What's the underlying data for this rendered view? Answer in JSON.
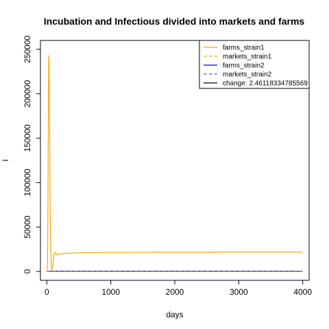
{
  "chart_data": {
    "type": "line",
    "title": "Incubation and Infectious divided into markets and farms",
    "xlabel": "days",
    "ylabel": "I",
    "xlim": [
      -100,
      4100
    ],
    "ylim": [
      -10000,
      260000
    ],
    "x_ticks": [
      0,
      1000,
      2000,
      3000,
      4000
    ],
    "x_tick_labels": [
      "0",
      "1000",
      "2000",
      "3000",
      "4000"
    ],
    "y_ticks": [
      0,
      50000,
      100000,
      150000,
      200000,
      250000
    ],
    "y_tick_labels": [
      "0",
      "50000",
      "100000",
      "150000",
      "200000",
      "250000"
    ],
    "legend_position": "top-right",
    "series": [
      {
        "name": "farms_strain1",
        "color": "#FFA500",
        "dash": "solid",
        "x": [
          0,
          10,
          18,
          25,
          30,
          35,
          40,
          46,
          52,
          60,
          70,
          80,
          90,
          100,
          110,
          120,
          130,
          140,
          150,
          160,
          175,
          190,
          205,
          220,
          240,
          260,
          300,
          350,
          400,
          500,
          600,
          800,
          1000,
          1500,
          2000,
          2500,
          3000,
          3500,
          4000
        ],
        "y": [
          500,
          5000,
          80000,
          200000,
          243000,
          238000,
          195000,
          130000,
          70000,
          28000,
          8000,
          2000,
          4000,
          12000,
          18000,
          21000,
          21500,
          20500,
          19000,
          18500,
          18800,
          19300,
          19700,
          19900,
          20000,
          20100,
          20300,
          20500,
          20700,
          21000,
          21200,
          21400,
          21500,
          21600,
          21700,
          21700,
          21800,
          21800,
          21800
        ]
      },
      {
        "name": "markets_strain1",
        "color": "#FFA500",
        "dash": "dashed",
        "x": [
          0,
          4000
        ],
        "y": [
          0,
          0
        ]
      },
      {
        "name": "farms_strain2",
        "color": "#0000CD",
        "dash": "solid",
        "x": [
          0,
          4000
        ],
        "y": [
          300,
          300
        ]
      },
      {
        "name": "markets_strain2",
        "color": "#6A5ACD",
        "dash": "dashed",
        "x": [
          0,
          4000
        ],
        "y": [
          0,
          0
        ]
      }
    ],
    "legend": [
      {
        "label": "farms_strain1",
        "color": "#FFA500",
        "dash": "solid"
      },
      {
        "label": "markets_strain1",
        "color": "#FFA500",
        "dash": "dashed"
      },
      {
        "label": "farms_strain2",
        "color": "#0000CD",
        "dash": "solid"
      },
      {
        "label": "markets_strain2",
        "color": "#6A5ACD",
        "dash": "dashed"
      },
      {
        "label": "change: 2.46118334785569",
        "color": "#000000",
        "dash": "solid"
      }
    ]
  }
}
